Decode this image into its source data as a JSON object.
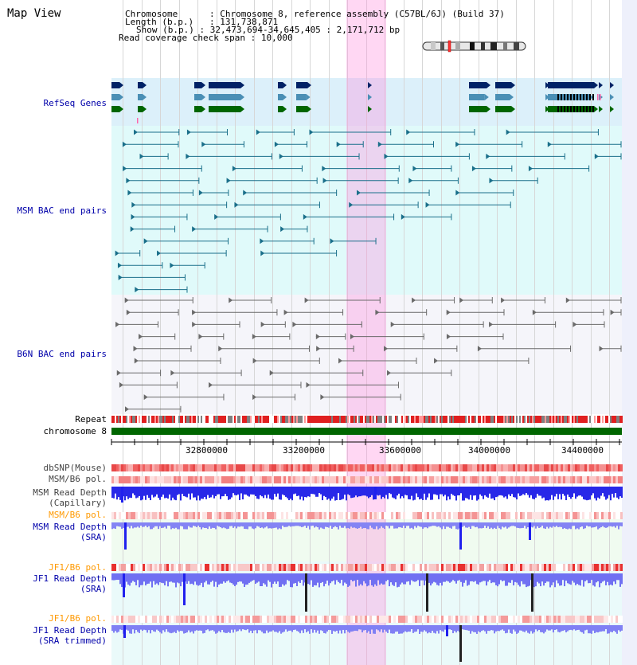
{
  "page_title": "Map View",
  "info": {
    "line1_key": "Chromosome",
    "line1_val": "Chromosome 8, reference assembly (C57BL/6J) (Build 37)",
    "line2_key": "Length (b.p.)",
    "line2_val": "131,738,871",
    "line3_key": "Show (b.p.)",
    "line3_val": "32,473,694-34,645,405 : 2,171,712 bp",
    "line4_key": "Read coverage check span",
    "line4_val": "10,000"
  },
  "tracks": {
    "refseq": "RefSeq Genes",
    "msm_bac": "MSM BAC end pairs",
    "b6n_bac": "B6N BAC end pairs",
    "repeat": "Repeat",
    "chromosome": "chromosome 8",
    "dbsnp": "dbSNP(Mouse)",
    "msm_b6_pol": "MSM/B6 pol.",
    "msm_depth_cap_1": "MSM Read Depth",
    "msm_depth_cap_2": "(Capillary)",
    "msm_b6_pol_2": "MSM/B6 pol.",
    "msm_depth_sra_1": "MSM Read Depth",
    "msm_depth_sra_2": "(SRA)",
    "jf1_b6_pol": "JF1/B6 pol.",
    "jf1_depth_sra_1": "JF1 Read Depth",
    "jf1_depth_sra_2": "(SRA)",
    "jf1_b6_pol_2": "JF1/B6 pol.",
    "jf1_depth_trim_1": "JF1 Read Depth",
    "jf1_depth_trim_2": "(SRA trimmed)"
  },
  "ruler": {
    "ticks": [
      "32800000",
      "33200000",
      "33600000",
      "34000000",
      "34400000"
    ]
  },
  "colors": {
    "refseq_bg": "#dcf0fa",
    "msm_bg": "#e0fafa",
    "b6n_bg": "#f5f5fa",
    "navy": "#002266",
    "teal": "#4a8fb5",
    "green": "#006600",
    "bac_line": "#1a6f8a",
    "b6n_line": "#6a6a6a",
    "highlight": "#ffb4ea",
    "depth_blue": "#2020ee",
    "depth_light": "#8080f5",
    "label_blue": "#0000aa",
    "label_orange": "#ff9900"
  }
}
